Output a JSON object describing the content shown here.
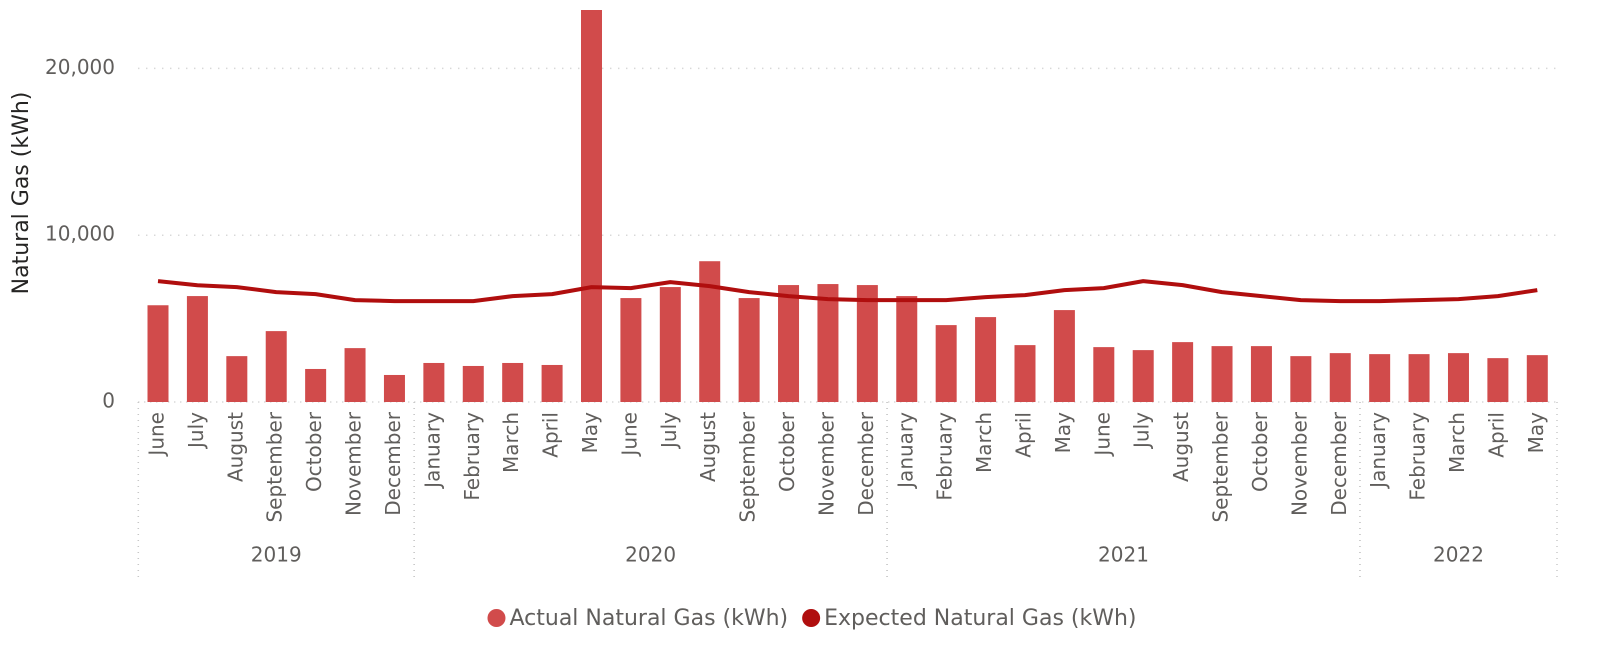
{
  "chart_data": {
    "type": "bar_line",
    "y_axis_label": "Natural Gas (kWh)",
    "category_groups": [
      {
        "label": "2019",
        "categories": [
          "June",
          "July",
          "August",
          "September",
          "October",
          "November",
          "December"
        ]
      },
      {
        "label": "2020",
        "categories": [
          "January",
          "February",
          "March",
          "April",
          "May",
          "June",
          "July",
          "August",
          "September",
          "October",
          "November",
          "December"
        ]
      },
      {
        "label": "2021",
        "categories": [
          "January",
          "February",
          "March",
          "April",
          "May",
          "June",
          "July",
          "August",
          "September",
          "October",
          "November",
          "December"
        ]
      },
      {
        "label": "2022",
        "categories": [
          "January",
          "February",
          "March",
          "April",
          "May"
        ]
      }
    ],
    "series": [
      {
        "name": "Actual Natural Gas (kWh)",
        "type": "bar",
        "color": "#d14b4b",
        "values": [
          5800,
          6350,
          2750,
          4250,
          1980,
          3230,
          1620,
          2340,
          2160,
          2340,
          2220,
          23500,
          6230,
          6890,
          8440,
          6230,
          7010,
          7070,
          7010,
          6350,
          4610,
          5090,
          3410,
          5510,
          3290,
          3110,
          3590,
          3350,
          3350,
          2750,
          2930,
          2870,
          2870,
          2930,
          2630,
          2810
        ]
      },
      {
        "name": "Expected Natural Gas (kWh)",
        "type": "line",
        "color": "#b00e0e",
        "values": [
          7250,
          7000,
          6890,
          6590,
          6470,
          6110,
          6050,
          6050,
          6050,
          6350,
          6470,
          6890,
          6830,
          7190,
          6950,
          6590,
          6350,
          6170,
          6110,
          6110,
          6110,
          6290,
          6410,
          6710,
          6830,
          7250,
          7010,
          6590,
          6350,
          6110,
          6050,
          6050,
          6110,
          6170,
          6350,
          6710
        ]
      }
    ],
    "ylim": [
      0,
      23500
    ],
    "yticks": [
      0,
      {
        "value": 10000,
        "label": "10,000"
      },
      {
        "value": 20000,
        "label": "20,000"
      }
    ],
    "grid": true,
    "legend": "bottom"
  }
}
